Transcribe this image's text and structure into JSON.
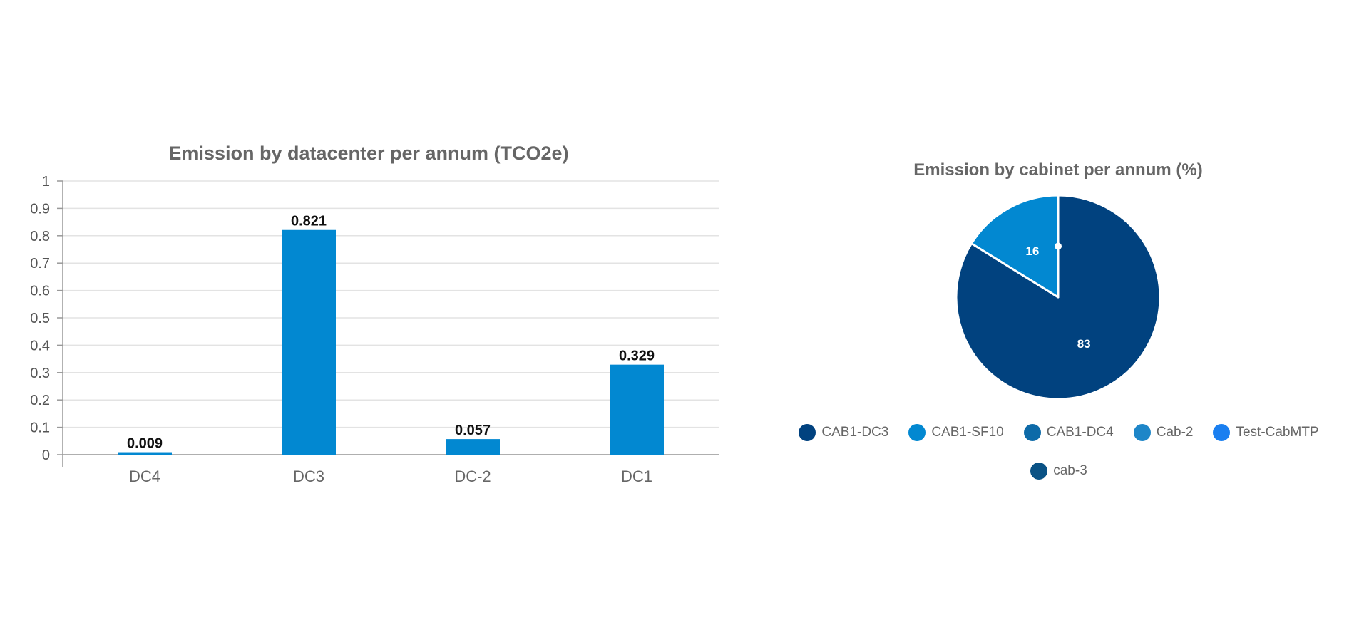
{
  "chart_data": [
    {
      "type": "bar",
      "title": "Emission by datacenter per annum (TCO2e)",
      "categories": [
        "DC4",
        "DC3",
        "DC-2",
        "DC1"
      ],
      "values": [
        0.009,
        0.821,
        0.057,
        0.329
      ],
      "value_labels": [
        "0.009",
        "0.821",
        "0.057",
        "0.329"
      ],
      "ylim": [
        0,
        1
      ],
      "yticks": [
        "0",
        "0.1",
        "0.2",
        "0.3",
        "0.4",
        "0.5",
        "0.6",
        "0.7",
        "0.8",
        "0.9",
        "1"
      ],
      "xlabel": "",
      "ylabel": "",
      "grid": true,
      "bar_color": "#0288D1"
    },
    {
      "type": "pie",
      "title": "Emission by cabinet per annum (%)",
      "slices": [
        {
          "name": "CAB1-DC3",
          "value": 83,
          "label": "83",
          "color": "#01427F"
        },
        {
          "name": "CAB1-SF10",
          "value": 16,
          "label": "16",
          "color": "#0288D1"
        },
        {
          "name": "CAB1-DC4",
          "value": 0,
          "label": "",
          "color": "#0D6AA8"
        },
        {
          "name": "Cab-2",
          "value": 0,
          "label": "",
          "color": "#1E86C8"
        },
        {
          "name": "Test-CabMTP",
          "value": 0,
          "label": "",
          "color": "#1A7FF0"
        },
        {
          "name": "cab-3",
          "value": 0,
          "label": "",
          "color": "#0A5285"
        }
      ],
      "legend_position": "bottom"
    }
  ]
}
